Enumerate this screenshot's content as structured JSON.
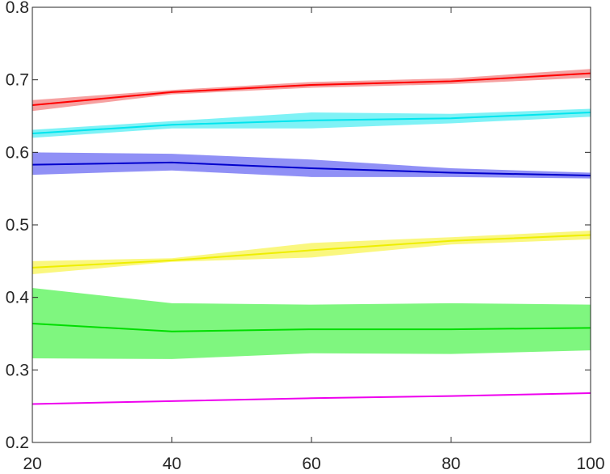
{
  "chart_data": {
    "type": "line",
    "title": "",
    "xlabel": "",
    "ylabel": "",
    "xlim": [
      20,
      100
    ],
    "ylim": [
      0.2,
      0.8
    ],
    "x_ticks": [
      20,
      40,
      60,
      80,
      100
    ],
    "x_tick_labels": [
      "20",
      "40",
      "60",
      "80",
      "100"
    ],
    "y_ticks": [
      0.2,
      0.3,
      0.4,
      0.5,
      0.6,
      0.7,
      0.8
    ],
    "y_tick_labels": [
      "0.2",
      "0.3",
      "0.4",
      "0.5",
      "0.6",
      "0.7",
      "0.8"
    ],
    "grid": false,
    "legend": "none",
    "x": [
      20,
      40,
      60,
      80,
      100
    ],
    "series": [
      {
        "color": "#ff0000",
        "band_color": "#ee4444",
        "values": [
          0.665,
          0.683,
          0.693,
          0.698,
          0.709
        ],
        "lower": [
          0.657,
          0.68,
          0.689,
          0.694,
          0.703
        ],
        "upper": [
          0.672,
          0.686,
          0.697,
          0.702,
          0.715
        ]
      },
      {
        "color": "#00e5ee",
        "band_color": "#00e5ee",
        "values": [
          0.626,
          0.638,
          0.644,
          0.647,
          0.655
        ],
        "lower": [
          0.62,
          0.633,
          0.633,
          0.64,
          0.649
        ],
        "upper": [
          0.631,
          0.643,
          0.655,
          0.653,
          0.66
        ]
      },
      {
        "color": "#0000cc",
        "band_color": "#2222ee",
        "values": [
          0.583,
          0.586,
          0.578,
          0.572,
          0.568
        ],
        "lower": [
          0.569,
          0.575,
          0.566,
          0.566,
          0.564
        ],
        "upper": [
          0.6,
          0.598,
          0.59,
          0.578,
          0.572
        ]
      },
      {
        "color": "#eeee00",
        "band_color": "#f5f000",
        "values": [
          0.441,
          0.451,
          0.465,
          0.478,
          0.486
        ],
        "lower": [
          0.432,
          0.449,
          0.455,
          0.473,
          0.48
        ],
        "upper": [
          0.45,
          0.454,
          0.475,
          0.483,
          0.492
        ]
      },
      {
        "color": "#00dd00",
        "band_color": "#00ee00",
        "values": [
          0.364,
          0.353,
          0.356,
          0.356,
          0.358
        ],
        "lower": [
          0.316,
          0.315,
          0.323,
          0.322,
          0.327
        ],
        "upper": [
          0.413,
          0.392,
          0.39,
          0.392,
          0.39
        ]
      },
      {
        "color": "#ee00ee",
        "band_color": "#ee00ee",
        "values": [
          0.253,
          0.257,
          0.261,
          0.264,
          0.268
        ],
        "lower": [
          0.253,
          0.257,
          0.261,
          0.264,
          0.268
        ],
        "upper": [
          0.253,
          0.257,
          0.261,
          0.264,
          0.268
        ]
      }
    ]
  }
}
